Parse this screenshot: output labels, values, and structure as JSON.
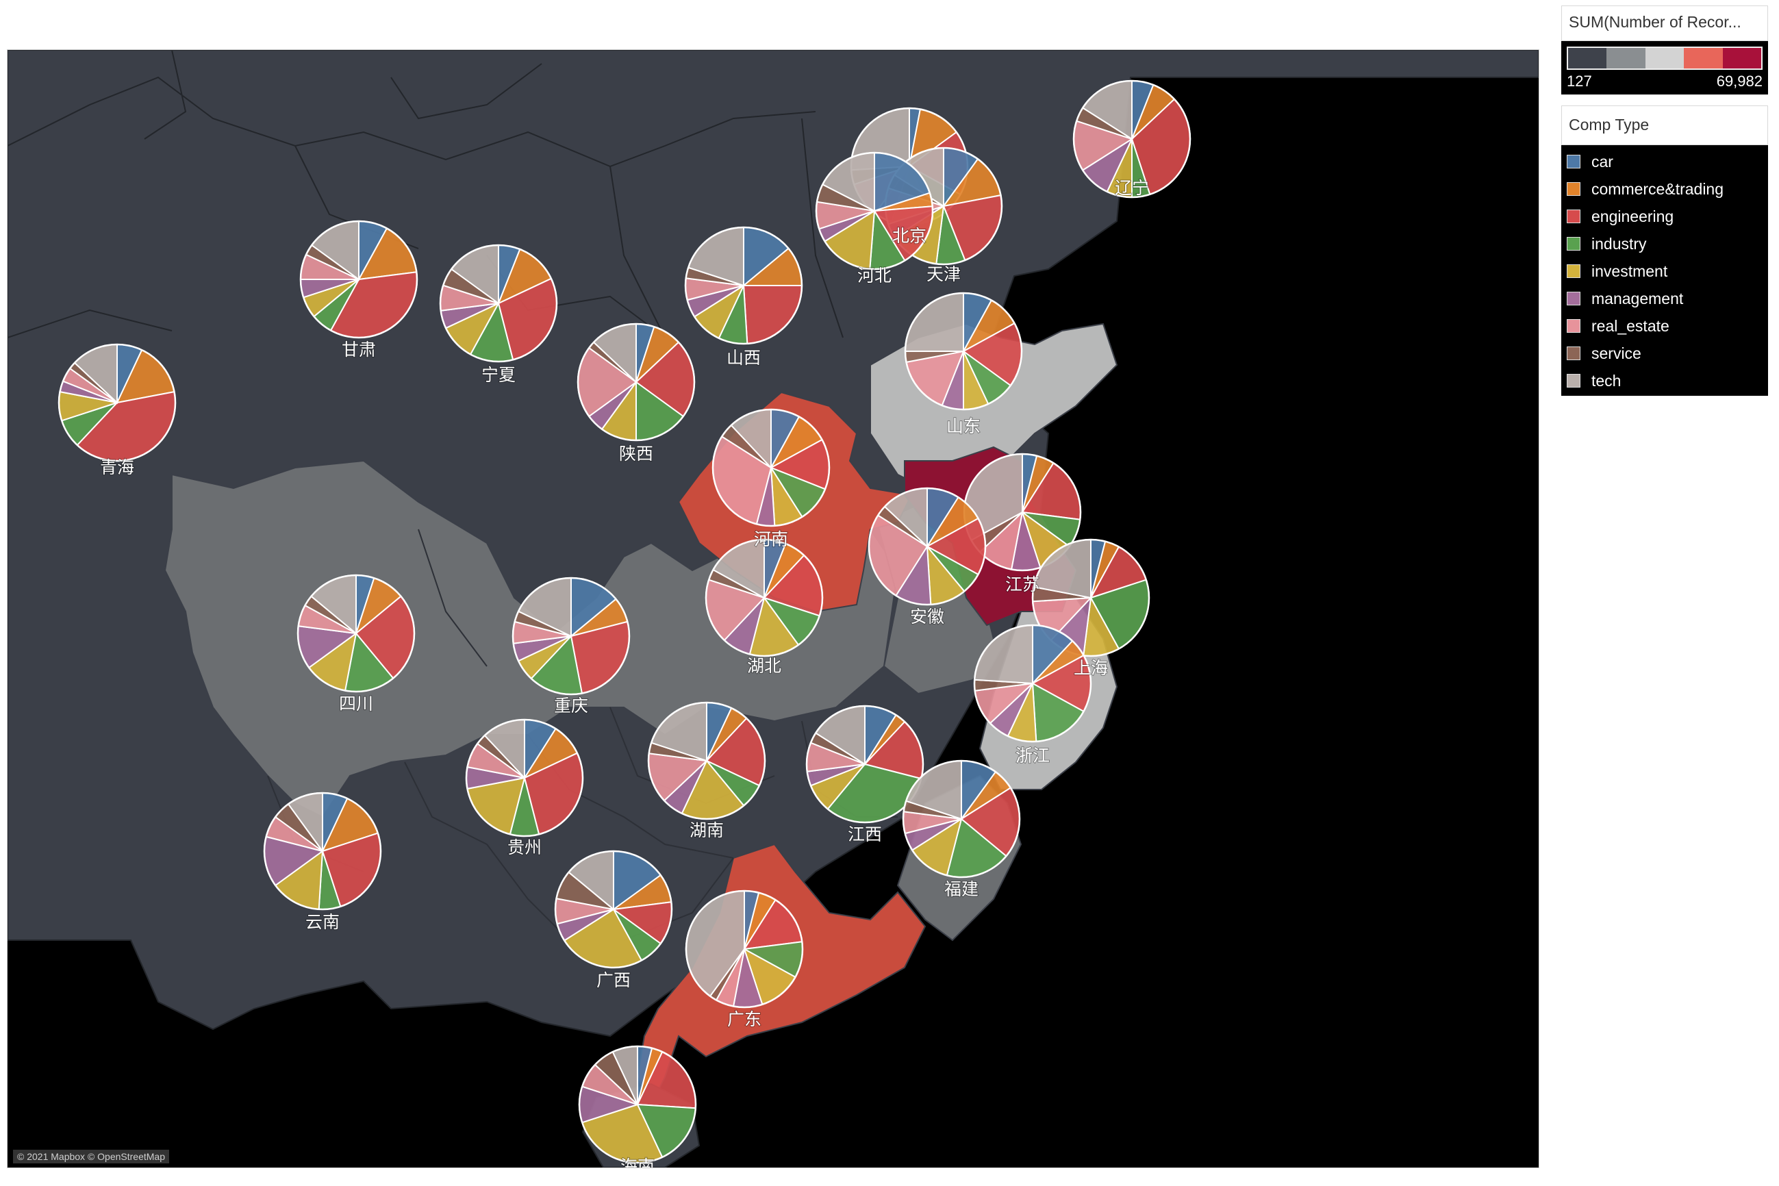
{
  "color_legend": {
    "title": "SUM(Number of Recor...",
    "min_label": "127",
    "max_label": "69,982",
    "ramp_colors": [
      "#3e424b",
      "#8a8e91",
      "#d3d3d3",
      "#e8665a",
      "#a8113a"
    ]
  },
  "category_legend": {
    "title": "Comp Type",
    "items": [
      {
        "label": "car",
        "color": "#4e79a7"
      },
      {
        "label": "commerce&trading",
        "color": "#e1832b"
      },
      {
        "label": "engineering",
        "color": "#d64b4c"
      },
      {
        "label": "industry",
        "color": "#59a14f"
      },
      {
        "label": "investment",
        "color": "#d4b33c"
      },
      {
        "label": "management",
        "color": "#a46e9c"
      },
      {
        "label": "real_estate",
        "color": "#e7939b"
      },
      {
        "label": "service",
        "color": "#8c6556"
      },
      {
        "label": "tech",
        "color": "#bab0ac"
      }
    ]
  },
  "attribution": "© 2021 Mapbox © OpenStreetMap",
  "chart_data": {
    "type": "pie",
    "title": "",
    "categories": [
      "car",
      "commerce&trading",
      "engineering",
      "industry",
      "investment",
      "management",
      "real_estate",
      "service",
      "tech"
    ],
    "color_scale": {
      "min": 127,
      "max": 69982
    },
    "provinces": [
      {
        "name": "辽宁",
        "level": "low",
        "shares": [
          6,
          7,
          32,
          5,
          7,
          9,
          14,
          4,
          16
        ]
      },
      {
        "name": "北京",
        "level": "low",
        "shares": [
          3,
          12,
          18,
          10,
          12,
          5,
          10,
          4,
          26
        ]
      },
      {
        "name": "天津",
        "level": "low",
        "shares": [
          10,
          12,
          22,
          8,
          14,
          4,
          10,
          4,
          16
        ]
      },
      {
        "name": "河北",
        "level": "low",
        "shares": [
          16,
          3,
          14,
          8,
          12,
          3,
          6,
          4,
          14
        ]
      },
      {
        "name": "甘肃",
        "level": "low",
        "shares": [
          8,
          15,
          35,
          6,
          6,
          5,
          7,
          3,
          15
        ]
      },
      {
        "name": "宁夏",
        "level": "low",
        "shares": [
          6,
          12,
          28,
          12,
          10,
          5,
          7,
          5,
          15
        ]
      },
      {
        "name": "山西",
        "level": "low",
        "shares": [
          14,
          11,
          24,
          8,
          9,
          5,
          6,
          3,
          20
        ]
      },
      {
        "name": "陕西",
        "level": "low",
        "shares": [
          5,
          8,
          22,
          15,
          10,
          5,
          20,
          2,
          13
        ]
      },
      {
        "name": "青海",
        "level": "low",
        "shares": [
          7,
          15,
          40,
          8,
          8,
          3,
          4,
          2,
          13
        ]
      },
      {
        "name": "山东",
        "level": "light",
        "shares": [
          8,
          9,
          18,
          8,
          7,
          6,
          16,
          3,
          25
        ]
      },
      {
        "name": "河南",
        "level": "high",
        "shares": [
          8,
          9,
          14,
          10,
          8,
          5,
          30,
          4,
          12
        ]
      },
      {
        "name": "江苏",
        "level": "max",
        "shares": [
          4,
          5,
          18,
          8,
          10,
          8,
          10,
          4,
          33
        ]
      },
      {
        "name": "安徽",
        "level": "mid",
        "shares": [
          9,
          8,
          16,
          6,
          10,
          10,
          25,
          3,
          13
        ]
      },
      {
        "name": "湖北",
        "level": "mid",
        "shares": [
          6,
          6,
          18,
          10,
          14,
          8,
          18,
          3,
          17
        ]
      },
      {
        "name": "上海",
        "level": "light",
        "shares": [
          4,
          4,
          12,
          22,
          10,
          10,
          12,
          4,
          22
        ]
      },
      {
        "name": "四川",
        "level": "mid",
        "shares": [
          5,
          9,
          25,
          14,
          12,
          12,
          6,
          3,
          14
        ]
      },
      {
        "name": "重庆",
        "level": "mid",
        "shares": [
          14,
          7,
          26,
          15,
          6,
          5,
          6,
          3,
          18
        ]
      },
      {
        "name": "浙江",
        "level": "light",
        "shares": [
          12,
          5,
          16,
          16,
          8,
          6,
          10,
          3,
          24
        ]
      },
      {
        "name": "贵州",
        "level": "low",
        "shares": [
          9,
          9,
          28,
          8,
          18,
          6,
          7,
          3,
          12
        ]
      },
      {
        "name": "湖南",
        "level": "low",
        "shares": [
          7,
          5,
          20,
          7,
          18,
          6,
          14,
          3,
          20
        ]
      },
      {
        "name": "江西",
        "level": "low",
        "shares": [
          9,
          3,
          17,
          32,
          8,
          4,
          8,
          3,
          16
        ]
      },
      {
        "name": "福建",
        "level": "mid",
        "shares": [
          10,
          6,
          20,
          18,
          12,
          5,
          6,
          3,
          20
        ]
      },
      {
        "name": "云南",
        "level": "low",
        "shares": [
          7,
          13,
          25,
          6,
          14,
          14,
          6,
          5,
          10
        ]
      },
      {
        "name": "广西",
        "level": "low",
        "shares": [
          15,
          8,
          12,
          7,
          24,
          5,
          7,
          8,
          14
        ]
      },
      {
        "name": "广东",
        "level": "high",
        "shares": [
          4,
          5,
          14,
          10,
          12,
          8,
          5,
          2,
          40
        ]
      },
      {
        "name": "海南",
        "level": "low",
        "shares": [
          4,
          3,
          19,
          17,
          27,
          10,
          7,
          6,
          7
        ]
      }
    ]
  }
}
